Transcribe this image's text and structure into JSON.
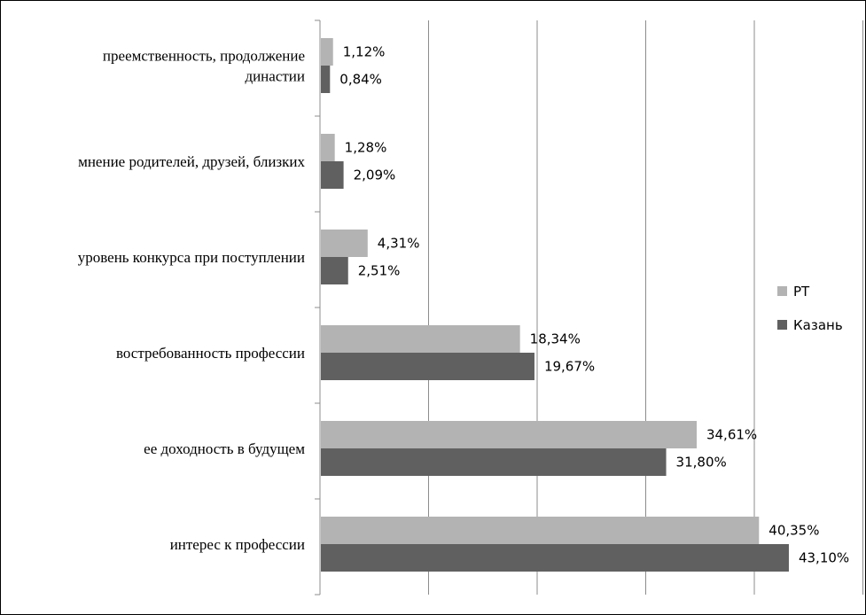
{
  "chart_data": {
    "type": "bar",
    "orientation": "horizontal",
    "title": "",
    "xlabel": "",
    "ylabel": "",
    "categories": [
      "преемственность, продолжение династии",
      "мнение родителей, друзей, близких",
      "уровень конкурса при поступлении",
      "востребованность профессии",
      "ее доходность в будущем",
      "интерес к профессии"
    ],
    "category_lines": [
      [
        "преемственность, продолжение",
        "династии"
      ],
      [
        "мнение родителей, друзей, близких"
      ],
      [
        "уровень конкурса при поступлении"
      ],
      [
        "востребованность профессии"
      ],
      [
        "ее доходность в будущем"
      ],
      [
        "интерес к профессии"
      ]
    ],
    "series": [
      {
        "name": "РТ",
        "color": "#b3b3b3",
        "values": [
          1.12,
          1.28,
          4.31,
          18.34,
          34.61,
          40.35
        ],
        "labels": [
          "1,12%",
          "1,28%",
          "4,31%",
          "18,34%",
          "34,61%",
          "40,35%"
        ]
      },
      {
        "name": "Казань",
        "color": "#606060",
        "values": [
          0.84,
          2.09,
          2.51,
          19.67,
          31.8,
          43.1
        ],
        "labels": [
          "0,84%",
          "2,09%",
          "2,51%",
          "19,67%",
          "31,80%",
          "43,10%"
        ]
      }
    ],
    "xlim": [
      0,
      50
    ],
    "grid": true,
    "gridline_step": 10,
    "legend": {
      "position": "right"
    }
  }
}
